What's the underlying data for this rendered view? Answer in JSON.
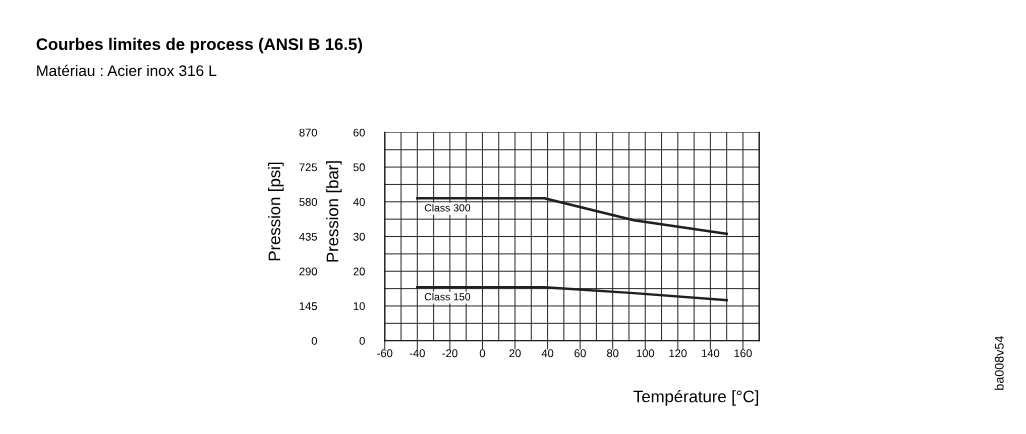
{
  "chart_data": {
    "type": "line",
    "title": "Courbes limites de process (ANSI B 16.5)",
    "subtitle": "Matériau : Acier inox 316 L",
    "xlabel": "Température [°C]",
    "ylabel": "Pression [bar]",
    "y2label": "Pression [psi]",
    "x": [
      -40,
      38,
      93,
      150
    ],
    "series": [
      {
        "name": "Class 300",
        "color": "#231f20",
        "values": [
          41.0,
          41.0,
          34.7,
          30.8
        ]
      },
      {
        "name": "Class 150",
        "color": "#231f20",
        "values": [
          15.4,
          15.4,
          13.7,
          11.7
        ]
      }
    ],
    "xlim": [
      -60,
      170
    ],
    "xticks": [
      -60,
      -40,
      -20,
      0,
      20,
      40,
      60,
      80,
      100,
      120,
      140,
      160
    ],
    "ylim": [
      0,
      60
    ],
    "yticks": [
      0,
      10,
      20,
      30,
      40,
      50,
      60
    ],
    "y2lim": [
      0,
      870
    ],
    "y2ticks": [
      0,
      145,
      290,
      435,
      580,
      725,
      870
    ],
    "grid": true,
    "line_style": "solid",
    "marker": "none",
    "annotations": [
      "ba008v54"
    ]
  }
}
